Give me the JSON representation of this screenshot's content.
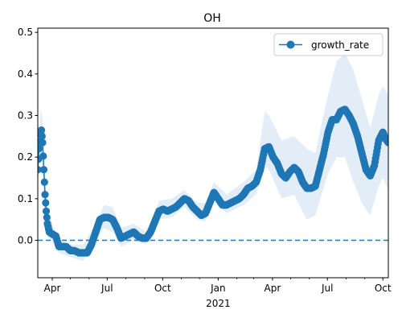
{
  "chart_data": {
    "type": "line",
    "title": "OH",
    "xlabel": "",
    "ylabel": "",
    "x_range": [
      "2020-03-08",
      "2021-10-10"
    ],
    "ylim": [
      -0.09,
      0.51
    ],
    "yticks": [
      0.0,
      0.1,
      0.2,
      0.3,
      0.4,
      0.5
    ],
    "ytick_labels": [
      "0.0",
      "0.1",
      "0.2",
      "0.3",
      "0.4",
      "0.5"
    ],
    "xticks": [
      {
        "date": "2020-04-01",
        "label": "Apr"
      },
      {
        "date": "2020-07-01",
        "label": "Jul"
      },
      {
        "date": "2020-10-01",
        "label": "Oct"
      },
      {
        "date": "2021-01-01",
        "label": "Jan",
        "sublabel": "2021"
      },
      {
        "date": "2021-04-01",
        "label": "Apr"
      },
      {
        "date": "2021-07-01",
        "label": "Jul"
      },
      {
        "date": "2021-10-01",
        "label": "Oct"
      }
    ],
    "grid": false,
    "legend": {
      "position": "top-right",
      "entries": [
        "growth_rate"
      ]
    },
    "reference_line": {
      "y": 0.0,
      "style": "dashed"
    },
    "colors": {
      "series": "#1f77b4",
      "band": "#dce9f5"
    },
    "series": [
      {
        "name": "growth_rate",
        "points": [
          [
            "2020-03-08",
            0.17
          ],
          [
            "2020-03-10",
            0.22
          ],
          [
            "2020-03-12",
            0.255
          ],
          [
            "2020-03-14",
            0.265
          ],
          [
            "2020-03-16",
            0.235
          ],
          [
            "2020-03-18",
            0.17
          ],
          [
            "2020-03-20",
            0.11
          ],
          [
            "2020-03-22",
            0.07
          ],
          [
            "2020-03-24",
            0.04
          ],
          [
            "2020-03-27",
            0.02
          ],
          [
            "2020-04-01",
            0.015
          ],
          [
            "2020-04-07",
            0.01
          ],
          [
            "2020-04-12",
            -0.015
          ],
          [
            "2020-04-18",
            -0.015
          ],
          [
            "2020-04-24",
            -0.015
          ],
          [
            "2020-05-01",
            -0.025
          ],
          [
            "2020-05-08",
            -0.025
          ],
          [
            "2020-05-15",
            -0.03
          ],
          [
            "2020-05-22",
            -0.03
          ],
          [
            "2020-05-29",
            -0.03
          ],
          [
            "2020-06-05",
            -0.01
          ],
          [
            "2020-06-12",
            0.02
          ],
          [
            "2020-06-19",
            0.05
          ],
          [
            "2020-06-26",
            0.055
          ],
          [
            "2020-07-03",
            0.055
          ],
          [
            "2020-07-10",
            0.05
          ],
          [
            "2020-07-17",
            0.03
          ],
          [
            "2020-07-24",
            0.005
          ],
          [
            "2020-07-31",
            0.01
          ],
          [
            "2020-08-07",
            0.015
          ],
          [
            "2020-08-14",
            0.02
          ],
          [
            "2020-08-21",
            0.01
          ],
          [
            "2020-08-28",
            0.005
          ],
          [
            "2020-09-04",
            0.005
          ],
          [
            "2020-09-11",
            0.02
          ],
          [
            "2020-09-18",
            0.045
          ],
          [
            "2020-09-25",
            0.07
          ],
          [
            "2020-10-02",
            0.075
          ],
          [
            "2020-10-09",
            0.07
          ],
          [
            "2020-10-16",
            0.075
          ],
          [
            "2020-10-23",
            0.08
          ],
          [
            "2020-10-30",
            0.09
          ],
          [
            "2020-11-06",
            0.1
          ],
          [
            "2020-11-13",
            0.095
          ],
          [
            "2020-11-20",
            0.08
          ],
          [
            "2020-11-27",
            0.07
          ],
          [
            "2020-12-04",
            0.06
          ],
          [
            "2020-12-11",
            0.065
          ],
          [
            "2020-12-18",
            0.09
          ],
          [
            "2020-12-25",
            0.115
          ],
          [
            "2021-01-01",
            0.1
          ],
          [
            "2021-01-08",
            0.085
          ],
          [
            "2021-01-15",
            0.085
          ],
          [
            "2021-01-22",
            0.09
          ],
          [
            "2021-01-29",
            0.095
          ],
          [
            "2021-02-05",
            0.1
          ],
          [
            "2021-02-12",
            0.11
          ],
          [
            "2021-02-19",
            0.125
          ],
          [
            "2021-02-26",
            0.13
          ],
          [
            "2021-03-05",
            0.14
          ],
          [
            "2021-03-12",
            0.17
          ],
          [
            "2021-03-19",
            0.22
          ],
          [
            "2021-03-26",
            0.225
          ],
          [
            "2021-04-02",
            0.2
          ],
          [
            "2021-04-09",
            0.185
          ],
          [
            "2021-04-16",
            0.16
          ],
          [
            "2021-04-23",
            0.15
          ],
          [
            "2021-04-30",
            0.165
          ],
          [
            "2021-05-07",
            0.175
          ],
          [
            "2021-05-14",
            0.165
          ],
          [
            "2021-05-21",
            0.14
          ],
          [
            "2021-05-28",
            0.125
          ],
          [
            "2021-06-04",
            0.125
          ],
          [
            "2021-06-11",
            0.13
          ],
          [
            "2021-06-18",
            0.17
          ],
          [
            "2021-06-25",
            0.21
          ],
          [
            "2021-07-02",
            0.26
          ],
          [
            "2021-07-09",
            0.29
          ],
          [
            "2021-07-16",
            0.29
          ],
          [
            "2021-07-23",
            0.31
          ],
          [
            "2021-07-30",
            0.315
          ],
          [
            "2021-08-06",
            0.3
          ],
          [
            "2021-08-13",
            0.28
          ],
          [
            "2021-08-20",
            0.25
          ],
          [
            "2021-08-27",
            0.21
          ],
          [
            "2021-09-03",
            0.17
          ],
          [
            "2021-09-10",
            0.155
          ],
          [
            "2021-09-17",
            0.18
          ],
          [
            "2021-09-24",
            0.24
          ],
          [
            "2021-10-01",
            0.26
          ],
          [
            "2021-10-05",
            0.245
          ],
          [
            "2021-10-10",
            0.235
          ]
        ],
        "band": [
          [
            "2020-03-08",
            0.14,
            0.21
          ],
          [
            "2020-03-13",
            0.21,
            0.32
          ],
          [
            "2020-03-16",
            0.18,
            0.29
          ],
          [
            "2020-03-20",
            0.07,
            0.15
          ],
          [
            "2020-03-24",
            0.01,
            0.07
          ],
          [
            "2020-04-01",
            -0.005,
            0.04
          ],
          [
            "2020-04-12",
            -0.03,
            0.0
          ],
          [
            "2020-05-01",
            -0.04,
            -0.01
          ],
          [
            "2020-05-22",
            -0.05,
            -0.01
          ],
          [
            "2020-06-12",
            0.0,
            0.04
          ],
          [
            "2020-06-26",
            0.03,
            0.085
          ],
          [
            "2020-07-10",
            0.02,
            0.08
          ],
          [
            "2020-07-24",
            -0.015,
            0.03
          ],
          [
            "2020-08-14",
            0.0,
            0.04
          ],
          [
            "2020-09-04",
            -0.01,
            0.02
          ],
          [
            "2020-09-25",
            0.05,
            0.095
          ],
          [
            "2020-10-16",
            0.055,
            0.1
          ],
          [
            "2020-11-06",
            0.08,
            0.12
          ],
          [
            "2020-11-27",
            0.05,
            0.09
          ],
          [
            "2020-12-11",
            0.045,
            0.09
          ],
          [
            "2020-12-25",
            0.095,
            0.14
          ],
          [
            "2021-01-15",
            0.065,
            0.11
          ],
          [
            "2021-02-12",
            0.085,
            0.14
          ],
          [
            "2021-03-05",
            0.11,
            0.17
          ],
          [
            "2021-03-19",
            0.18,
            0.31
          ],
          [
            "2021-03-26",
            0.17,
            0.3
          ],
          [
            "2021-04-16",
            0.1,
            0.24
          ],
          [
            "2021-05-07",
            0.11,
            0.25
          ],
          [
            "2021-05-28",
            0.05,
            0.22
          ],
          [
            "2021-06-11",
            0.06,
            0.21
          ],
          [
            "2021-07-02",
            0.16,
            0.35
          ],
          [
            "2021-07-16",
            0.2,
            0.43
          ],
          [
            "2021-07-30",
            0.2,
            0.45
          ],
          [
            "2021-08-13",
            0.14,
            0.41
          ],
          [
            "2021-08-27",
            0.09,
            0.34
          ],
          [
            "2021-09-10",
            0.06,
            0.27
          ],
          [
            "2021-09-24",
            0.13,
            0.35
          ],
          [
            "2021-10-01",
            0.15,
            0.37
          ],
          [
            "2021-10-10",
            0.12,
            0.35
          ]
        ]
      }
    ]
  }
}
